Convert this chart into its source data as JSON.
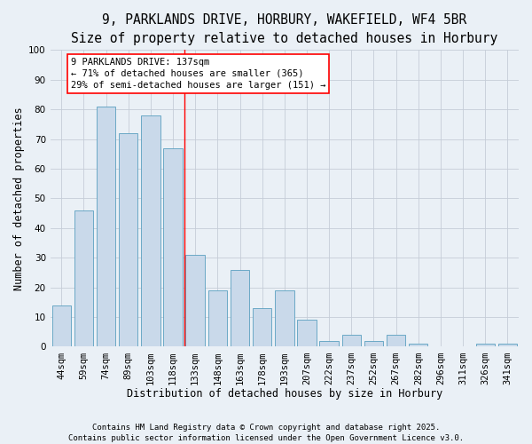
{
  "title_line1": "9, PARKLANDS DRIVE, HORBURY, WAKEFIELD, WF4 5BR",
  "title_line2": "Size of property relative to detached houses in Horbury",
  "xlabel": "Distribution of detached houses by size in Horbury",
  "ylabel": "Number of detached properties",
  "categories": [
    "44sqm",
    "59sqm",
    "74sqm",
    "89sqm",
    "103sqm",
    "118sqm",
    "133sqm",
    "148sqm",
    "163sqm",
    "178sqm",
    "193sqm",
    "207sqm",
    "222sqm",
    "237sqm",
    "252sqm",
    "267sqm",
    "282sqm",
    "296sqm",
    "311sqm",
    "326sqm",
    "341sqm"
  ],
  "values": [
    14,
    46,
    81,
    72,
    78,
    67,
    31,
    19,
    26,
    13,
    19,
    9,
    2,
    4,
    2,
    4,
    1,
    0,
    0,
    1,
    1
  ],
  "bar_color": "#c9d9ea",
  "bar_edge_color": "#5a9fc0",
  "grid_color": "#c5cdd8",
  "background_color": "#eaf0f6",
  "annotation_line1": "9 PARKLANDS DRIVE: 137sqm",
  "annotation_line2": "← 71% of detached houses are smaller (365)",
  "annotation_line3": "29% of semi-detached houses are larger (151) →",
  "property_line_index": 6,
  "ylim": [
    0,
    100
  ],
  "yticks": [
    0,
    10,
    20,
    30,
    40,
    50,
    60,
    70,
    80,
    90,
    100
  ],
  "footer_text": "Contains HM Land Registry data © Crown copyright and database right 2025.\nContains public sector information licensed under the Open Government Licence v3.0.",
  "title_fontsize": 10.5,
  "subtitle_fontsize": 9.5,
  "axis_label_fontsize": 8.5,
  "tick_fontsize": 7.5,
  "annotation_fontsize": 7.5,
  "footer_fontsize": 6.5
}
